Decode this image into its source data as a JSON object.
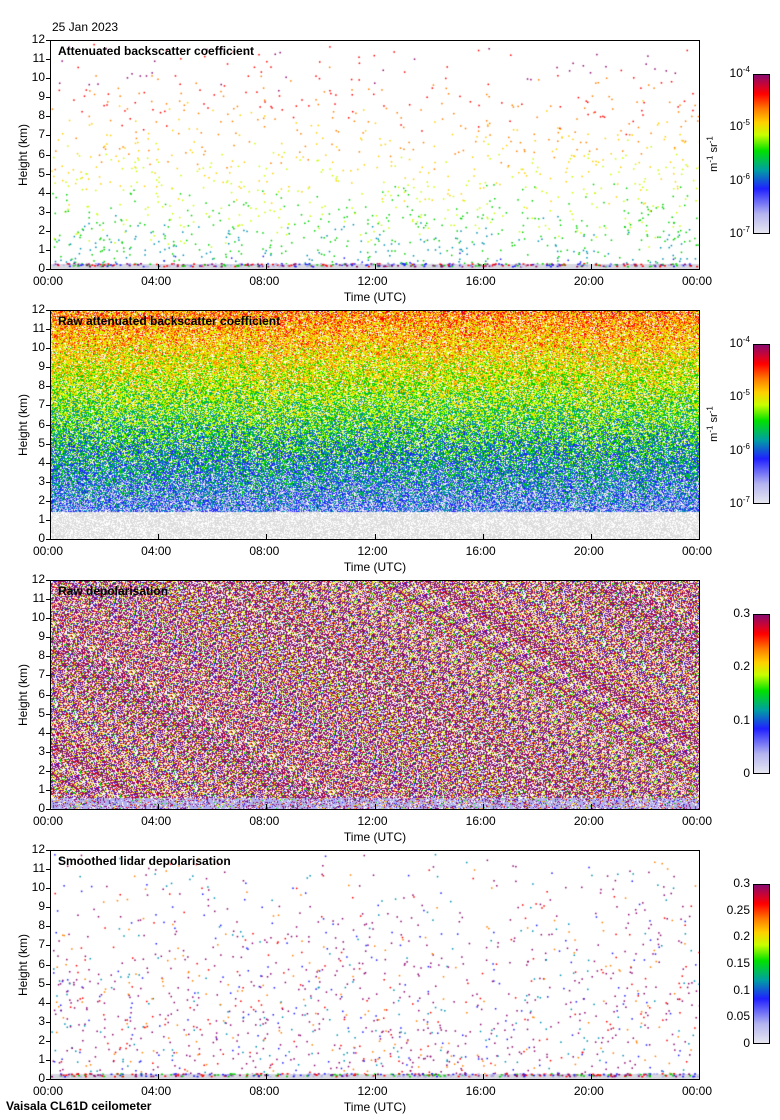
{
  "date": "25 Jan 2023",
  "footer": "Vaisala CL61D ceilometer",
  "x_label": "Time (UTC)",
  "y_label": "Height (km)",
  "x_ticks": [
    "00:00",
    "04:00",
    "08:00",
    "12:00",
    "16:00",
    "20:00",
    "00:00"
  ],
  "y_ticks": [
    "0",
    "1",
    "2",
    "3",
    "4",
    "5",
    "6",
    "7",
    "8",
    "9",
    "10",
    "11",
    "12"
  ],
  "chart_data": [
    {
      "type": "heatmap",
      "title": "Attenuated backscatter coefficient",
      "xlabel": "Time (UTC)",
      "ylabel": "Height (km)",
      "xlim": [
        0,
        24
      ],
      "ylim": [
        0,
        12
      ],
      "colorbar": {
        "scale": "log",
        "range": [
          1e-07,
          0.0001
        ],
        "ticks": [
          "10-7",
          "10-6",
          "10-5",
          "10-4"
        ],
        "units": "m-1 sr-1"
      },
      "pattern": "sparse"
    },
    {
      "type": "heatmap",
      "title": "Raw attenuated backscatter coefficient",
      "xlabel": "Time (UTC)",
      "ylabel": "Height (km)",
      "xlim": [
        0,
        24
      ],
      "ylim": [
        0,
        12
      ],
      "colorbar": {
        "scale": "log",
        "range": [
          1e-07,
          0.0001
        ],
        "ticks": [
          "10-7",
          "10-6",
          "10-5",
          "10-4"
        ],
        "units": "m-1 sr-1"
      },
      "pattern": "noise-height"
    },
    {
      "type": "heatmap",
      "title": "Raw depolarisation",
      "xlabel": "Time (UTC)",
      "ylabel": "Height (km)",
      "xlim": [
        0,
        24
      ],
      "ylim": [
        0,
        12
      ],
      "colorbar": {
        "scale": "linear",
        "range": [
          0,
          0.3
        ],
        "ticks": [
          "0",
          "0.1",
          "0.2",
          "0.3"
        ],
        "units": ""
      },
      "pattern": "noise-depol"
    },
    {
      "type": "heatmap",
      "title": "Smoothed lidar depolarisation",
      "xlabel": "Time (UTC)",
      "ylabel": "Height (km)",
      "xlim": [
        0,
        24
      ],
      "ylim": [
        0,
        12
      ],
      "colorbar": {
        "scale": "linear",
        "range": [
          0,
          0.3
        ],
        "ticks": [
          "0",
          "0.05",
          "0.1",
          "0.15",
          "0.2",
          "0.25",
          "0.3"
        ],
        "units": ""
      },
      "pattern": "sparse-depol"
    }
  ]
}
